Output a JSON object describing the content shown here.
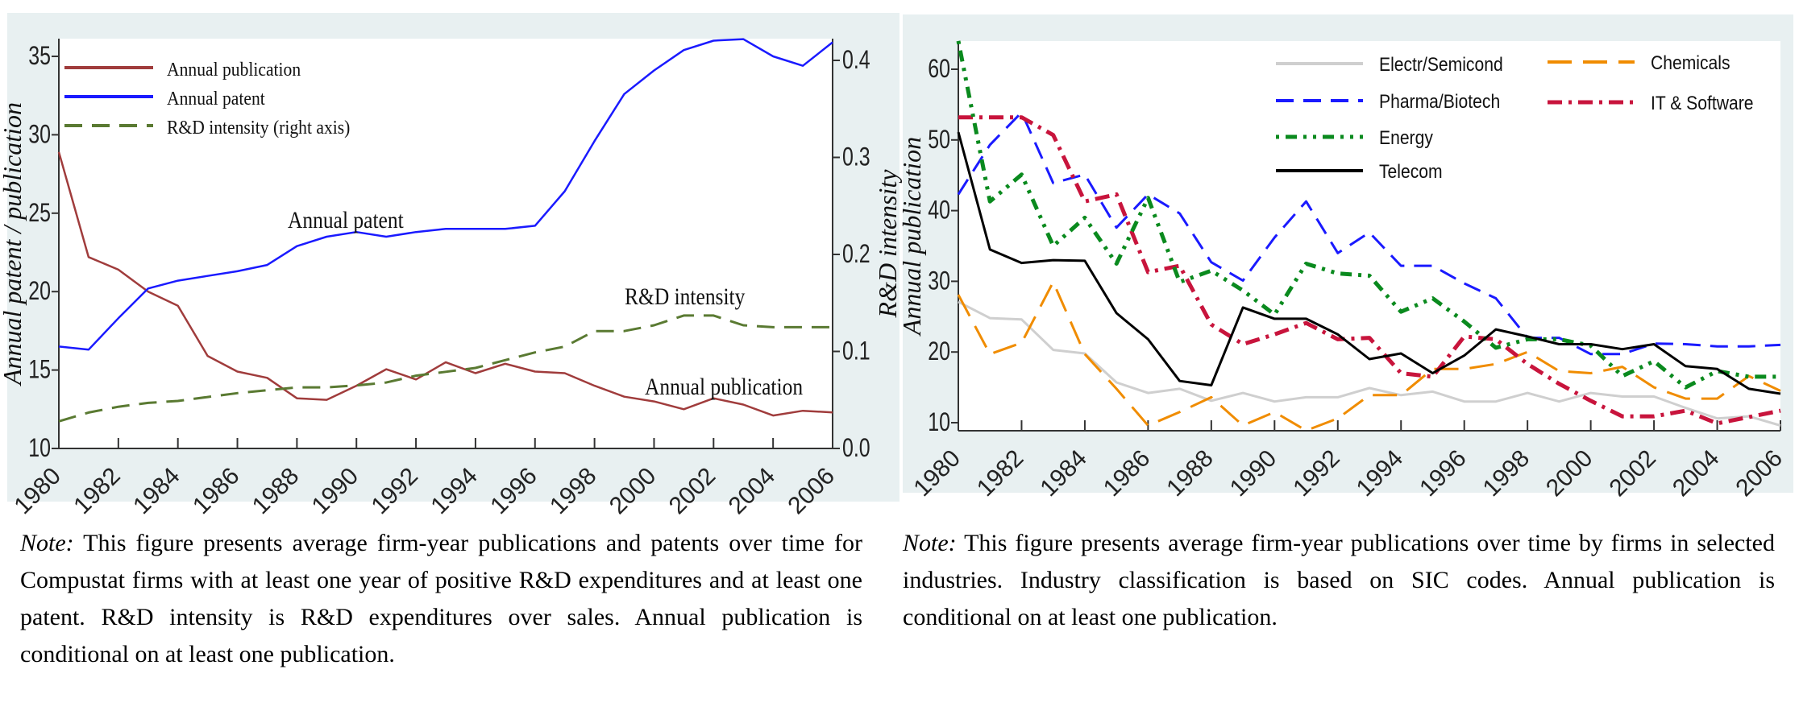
{
  "chart_data": [
    {
      "type": "line",
      "title": "",
      "xlabel": "",
      "ylabel": "Annual patent / publication",
      "ylabel_right": "R&D intensity",
      "x": [
        1980,
        1981,
        1982,
        1983,
        1984,
        1985,
        1986,
        1987,
        1988,
        1989,
        1990,
        1991,
        1992,
        1993,
        1994,
        1995,
        1996,
        1997,
        1998,
        1999,
        2000,
        2001,
        2002,
        2003,
        2004,
        2005,
        2006
      ],
      "xticks": [
        "1980",
        "1982",
        "1984",
        "1986",
        "1988",
        "1990",
        "1992",
        "1994",
        "1996",
        "1998",
        "2000",
        "2002",
        "2004",
        "2006"
      ],
      "ylim": [
        10,
        36.2
      ],
      "yticks": [
        "10",
        "15",
        "20",
        "25",
        "30",
        "35"
      ],
      "ylim_right": [
        0,
        0.43
      ],
      "yticks_right": [
        "0.0",
        "0.1",
        "0.2",
        "0.3",
        "0.4"
      ],
      "legend_position": "top-left",
      "grid": false,
      "series": [
        {
          "name": "Annual publication",
          "axis": "left",
          "color": "#a03c3c",
          "style": "solid",
          "values": [
            28.9,
            22.2,
            21.4,
            20.0,
            19.1,
            15.9,
            14.9,
            14.5,
            13.2,
            13.1,
            14.0,
            15.05,
            14.4,
            15.5,
            14.8,
            15.4,
            14.9,
            14.8,
            14.0,
            13.3,
            13.0,
            12.5,
            13.2,
            12.8,
            12.1,
            12.4,
            12.3
          ]
        },
        {
          "name": "Annual patent",
          "axis": "left",
          "color": "#1a1aff",
          "style": "solid",
          "values": [
            16.5,
            16.3,
            18.3,
            20.2,
            20.7,
            21.0,
            21.3,
            21.7,
            22.9,
            23.5,
            23.8,
            23.5,
            23.8,
            24.0,
            24.0,
            24.0,
            24.2,
            26.4,
            29.6,
            32.6,
            34.1,
            35.4,
            36.0,
            36.1,
            35.0,
            34.4,
            35.9
          ]
        },
        {
          "name": "R&D intensity (right axis)",
          "axis": "right",
          "color": "#5a7a32",
          "style": "dash",
          "values": [
            0.028,
            0.037,
            0.043,
            0.047,
            0.049,
            0.053,
            0.057,
            0.06,
            0.063,
            0.063,
            0.065,
            0.068,
            0.075,
            0.079,
            0.083,
            0.091,
            0.099,
            0.105,
            0.121,
            0.121,
            0.127,
            0.137,
            0.137,
            0.127,
            0.125,
            0.125,
            0.125
          ]
        }
      ],
      "annotations": [
        "Annual patent",
        "R&D intensity",
        "Annual publication"
      ]
    },
    {
      "type": "line",
      "title": "",
      "xlabel": "",
      "ylabel": "Annual  publication",
      "x": [
        1980,
        1981,
        1982,
        1983,
        1984,
        1985,
        1986,
        1987,
        1988,
        1989,
        1990,
        1991,
        1992,
        1993,
        1994,
        1995,
        1996,
        1997,
        1998,
        1999,
        2000,
        2001,
        2002,
        2003,
        2004,
        2005,
        2006
      ],
      "xticks": [
        "1980",
        "1982",
        "1984",
        "1986",
        "1988",
        "1990",
        "1992",
        "1994",
        "1996",
        "1998",
        "2000",
        "2002",
        "2004",
        "2006"
      ],
      "ylim": [
        8.9,
        64.2
      ],
      "yticks": [
        "10",
        "20",
        "30",
        "40",
        "50",
        "60"
      ],
      "legend_position": "top-right",
      "grid": false,
      "series": [
        {
          "name": "Electr/Semicond",
          "color": "#cfcfcf",
          "style": "solid",
          "values": [
            27.1,
            24.8,
            24.6,
            20.3,
            19.8,
            15.7,
            14.2,
            14.8,
            13.1,
            14.2,
            13.0,
            13.6,
            13.6,
            14.9,
            13.9,
            14.4,
            13.0,
            13.0,
            14.2,
            13.0,
            14.2,
            13.7,
            13.7,
            12.1,
            10.6,
            10.9,
            9.6
          ]
        },
        {
          "name": "Chemicals",
          "color": "#f08c00",
          "style": "longdash",
          "values": [
            28.1,
            19.7,
            21.3,
            29.9,
            19.7,
            14.8,
            9.6,
            11.5,
            13.6,
            9.6,
            11.5,
            8.9,
            10.6,
            13.9,
            13.9,
            17.6,
            17.6,
            18.3,
            20.0,
            17.3,
            17.0,
            17.9,
            15.0,
            13.4,
            13.4,
            16.6,
            14.5
          ]
        },
        {
          "name": "Pharma/Biotech",
          "color": "#1a1aff",
          "style": "dash",
          "values": [
            42.3,
            49.3,
            53.9,
            43.9,
            45.1,
            37.6,
            42.3,
            39.6,
            32.7,
            30.1,
            36.2,
            41.3,
            34.0,
            36.9,
            32.2,
            32.2,
            29.7,
            27.6,
            22.0,
            22.0,
            19.7,
            19.7,
            21.2,
            21.1,
            20.8,
            20.8,
            21.0
          ]
        },
        {
          "name": "IT & Software",
          "color": "#c8143c",
          "style": "dashdot",
          "values": [
            53.2,
            53.2,
            53.2,
            50.7,
            41.3,
            42.3,
            31.3,
            32.2,
            23.9,
            21.1,
            22.5,
            24.1,
            21.8,
            22.0,
            17.0,
            16.5,
            22.2,
            21.8,
            18.3,
            15.5,
            13.1,
            10.9,
            10.9,
            11.7,
            9.9,
            10.8,
            11.7
          ]
        },
        {
          "name": "Energy",
          "color": "#0a8a1e",
          "style": "dashdotdot",
          "values": [
            64.0,
            41.3,
            45.1,
            35.0,
            39.0,
            32.5,
            41.8,
            29.9,
            31.5,
            28.7,
            25.3,
            32.5,
            31.1,
            30.8,
            25.7,
            27.6,
            24.3,
            20.6,
            21.8,
            21.8,
            20.9,
            16.6,
            18.7,
            15.0,
            17.3,
            16.5,
            16.5
          ]
        },
        {
          "name": "Telecom",
          "color": "#000000",
          "style": "solid",
          "values": [
            51.1,
            34.5,
            32.6,
            33.0,
            32.9,
            25.5,
            21.8,
            15.9,
            15.3,
            26.3,
            24.7,
            24.7,
            22.5,
            19.0,
            19.8,
            17.0,
            19.5,
            23.2,
            22.2,
            21.1,
            21.1,
            20.4,
            21.1,
            18.0,
            17.6,
            14.8,
            14.1
          ]
        }
      ]
    }
  ],
  "notes": {
    "left_label": "Note:",
    "left_text": " This figure presents average firm-year publications and patents over time for Compustat firms with at least one year of positive R&D expenditures and at least one patent. R&D intensity is R&D expenditures over sales. Annual publication is conditional on at least one publication.",
    "right_label": "Note:",
    "right_text": " This figure presents average firm-year publications over time by firms in selected industries. Industry classification is based on SIC codes. Annual publication is conditional on at least one publication."
  }
}
